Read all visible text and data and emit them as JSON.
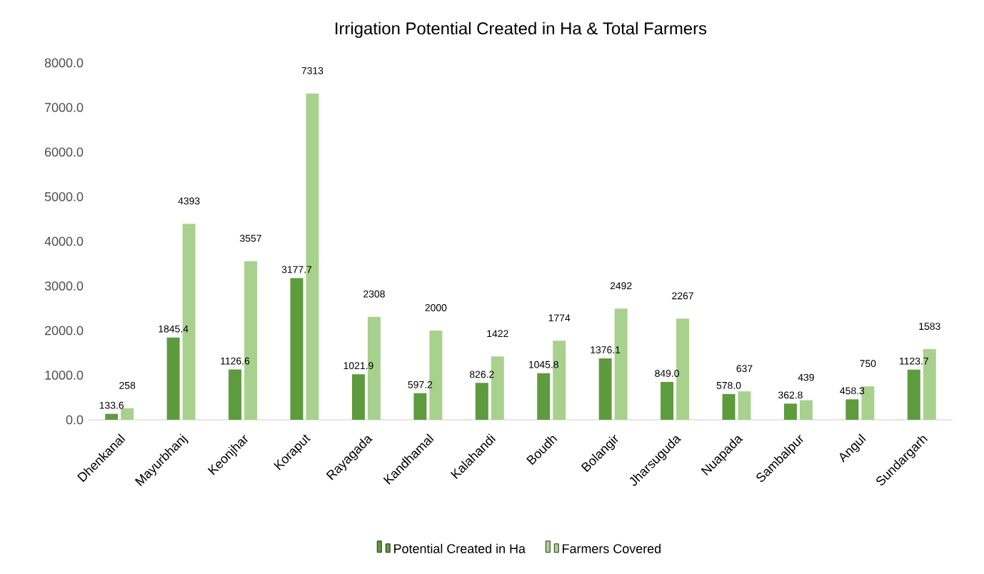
{
  "chart_data": {
    "type": "bar",
    "title": "Irrigation Potential Created in Ha & Total Farmers",
    "categories": [
      "Dhenkanal",
      "Mayurbhanj",
      "Keonjhar",
      "Koraput",
      "Rayagada",
      "Kandhamal",
      "Kalahandi",
      "Boudh",
      "Bolangir",
      "Jharsuguda",
      "Nuapada",
      "Sambalpur",
      "Angul",
      "Sundargarh"
    ],
    "series": [
      {
        "name": "Potential Created in Ha",
        "color": "#5e9b3e",
        "values": [
          133.6,
          1845.4,
          1126.6,
          3177.7,
          1021.9,
          597.2,
          826.2,
          1045.8,
          1376.1,
          849.0,
          578.0,
          362.8,
          458.3,
          1123.7
        ],
        "value_labels": [
          "133.6",
          "1845.4",
          "1126.6",
          "3177.7",
          "1021.9",
          "597.2",
          "826.2",
          "1045.8",
          "1376.1",
          "849.0",
          "578.0",
          "362.8",
          "458.3",
          "1123.7"
        ]
      },
      {
        "name": "Farmers Covered",
        "color": "#a9d18e",
        "values": [
          258,
          4393,
          3557,
          7313,
          2308,
          2000,
          1422,
          1774,
          2492,
          2267,
          637,
          439,
          750,
          1583
        ],
        "value_labels": [
          "258",
          "4393",
          "3557",
          "7313",
          "2308",
          "2000",
          "1422",
          "1774",
          "2492",
          "2267",
          "637",
          "439",
          "750",
          "1583"
        ]
      }
    ],
    "ylim": [
      0,
      8000
    ],
    "yticks": [
      {
        "value": 0,
        "label": "0.0"
      },
      {
        "value": 1000,
        "label": "1000.0"
      },
      {
        "value": 2000,
        "label": "2000.0"
      },
      {
        "value": 3000,
        "label": "3000.0"
      },
      {
        "value": 4000,
        "label": "4000.0"
      },
      {
        "value": 5000,
        "label": "5000.0"
      },
      {
        "value": 6000,
        "label": "6000.0"
      },
      {
        "value": 7000,
        "label": "7000.0"
      },
      {
        "value": 8000,
        "label": "8000.0"
      }
    ],
    "legend": "bottom"
  }
}
